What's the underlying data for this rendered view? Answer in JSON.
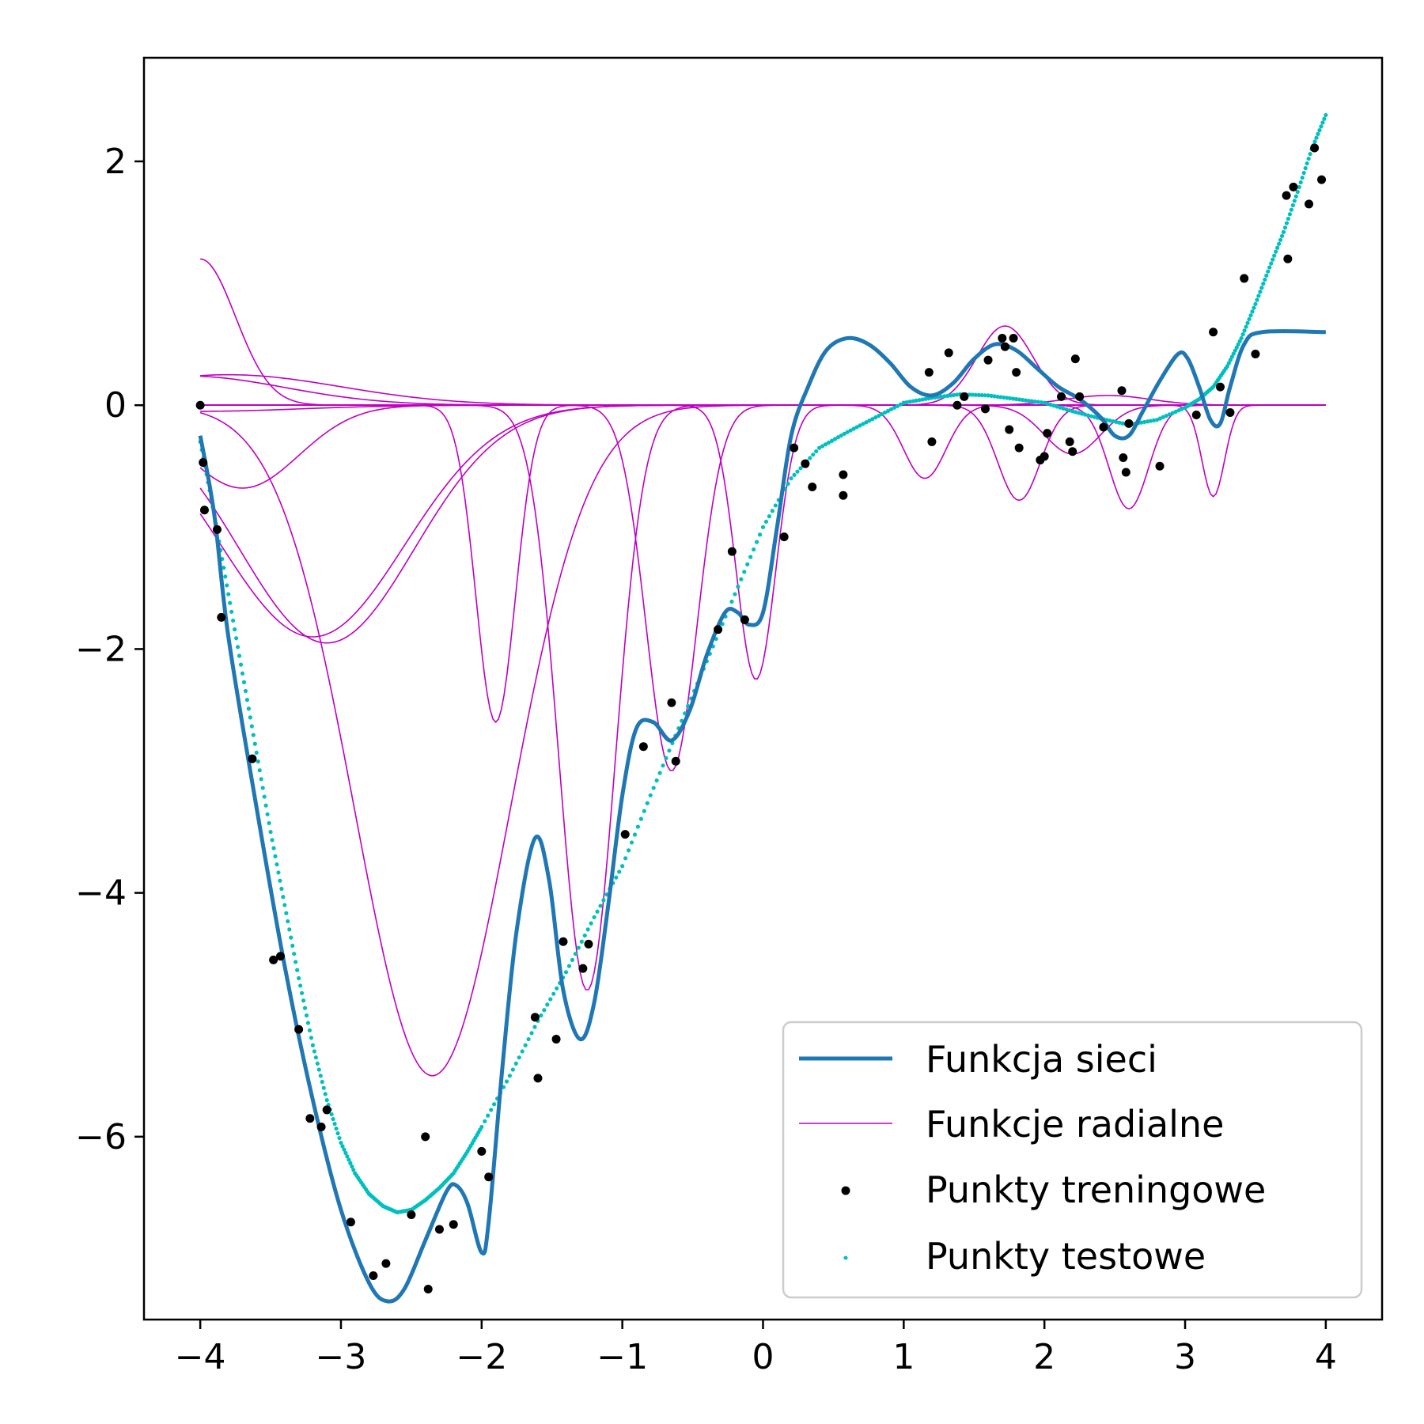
{
  "chart_data": {
    "type": "line",
    "title": "",
    "xlabel": "",
    "ylabel": "",
    "xlim": [
      -4.4,
      4.4
    ],
    "ylim": [
      -7.5,
      2.85
    ],
    "xticks": [
      -4,
      -3,
      -2,
      -1,
      0,
      1,
      2,
      3,
      4
    ],
    "yticks": [
      2,
      0,
      -2,
      -4,
      -6
    ],
    "xtick_labels": [
      "−4",
      "−3",
      "−2",
      "−1",
      "0",
      "1",
      "2",
      "3",
      "4"
    ],
    "ytick_labels": [
      "2",
      "0",
      "−2",
      "−4",
      "−6"
    ],
    "grid": false,
    "legend_position": "lower-right",
    "colors": {
      "network": "#1f77b4",
      "radial": "#bf00bf",
      "train": "#000000",
      "test": "#00bfbf"
    },
    "series": [
      {
        "name": "Funkcja sieci",
        "kind": "line",
        "points": [
          [
            -4.0,
            -0.25
          ],
          [
            -3.9,
            -0.9
          ],
          [
            -3.8,
            -1.9
          ],
          [
            -3.6,
            -3.3
          ],
          [
            -3.4,
            -4.6
          ],
          [
            -3.2,
            -5.7
          ],
          [
            -3.0,
            -6.6
          ],
          [
            -2.8,
            -7.2
          ],
          [
            -2.67,
            -7.35
          ],
          [
            -2.55,
            -7.25
          ],
          [
            -2.4,
            -6.85
          ],
          [
            -2.25,
            -6.45
          ],
          [
            -2.18,
            -6.4
          ],
          [
            -2.1,
            -6.55
          ],
          [
            -2.0,
            -6.95
          ],
          [
            -1.95,
            -6.7
          ],
          [
            -1.85,
            -5.4
          ],
          [
            -1.75,
            -4.3
          ],
          [
            -1.62,
            -3.55
          ],
          [
            -1.52,
            -3.9
          ],
          [
            -1.42,
            -4.8
          ],
          [
            -1.3,
            -5.2
          ],
          [
            -1.2,
            -4.9
          ],
          [
            -1.1,
            -4.1
          ],
          [
            -1.0,
            -3.2
          ],
          [
            -0.9,
            -2.65
          ],
          [
            -0.78,
            -2.6
          ],
          [
            -0.65,
            -2.75
          ],
          [
            -0.52,
            -2.5
          ],
          [
            -0.4,
            -2.05
          ],
          [
            -0.27,
            -1.7
          ],
          [
            -0.18,
            -1.7
          ],
          [
            -0.1,
            -1.8
          ],
          [
            0.0,
            -1.7
          ],
          [
            0.1,
            -1.0
          ],
          [
            0.2,
            -0.25
          ],
          [
            0.32,
            0.15
          ],
          [
            0.45,
            0.45
          ],
          [
            0.6,
            0.55
          ],
          [
            0.75,
            0.5
          ],
          [
            0.9,
            0.35
          ],
          [
            1.05,
            0.15
          ],
          [
            1.2,
            0.08
          ],
          [
            1.35,
            0.18
          ],
          [
            1.5,
            0.38
          ],
          [
            1.65,
            0.5
          ],
          [
            1.8,
            0.45
          ],
          [
            1.95,
            0.3
          ],
          [
            2.1,
            0.15
          ],
          [
            2.25,
            0.05
          ],
          [
            2.4,
            -0.1
          ],
          [
            2.5,
            -0.25
          ],
          [
            2.6,
            -0.25
          ],
          [
            2.7,
            -0.05
          ],
          [
            2.82,
            0.2
          ],
          [
            2.95,
            0.42
          ],
          [
            3.02,
            0.38
          ],
          [
            3.1,
            0.15
          ],
          [
            3.18,
            -0.12
          ],
          [
            3.25,
            -0.15
          ],
          [
            3.32,
            0.15
          ],
          [
            3.42,
            0.5
          ],
          [
            3.55,
            0.6
          ],
          [
            4.0,
            0.6
          ]
        ]
      },
      {
        "name": "Funkcje radialne",
        "kind": "rbf-family",
        "curves": [
          {
            "a": 1.2,
            "c": -4.0,
            "s": 0.25
          },
          {
            "a": 0.25,
            "c": -3.8,
            "s": 0.8
          },
          {
            "a": 0.24,
            "c": -4.1,
            "s": 0.7
          },
          {
            "a": -0.05,
            "c": -4.0,
            "s": 0.7
          },
          {
            "a": -0.68,
            "c": -3.7,
            "s": 0.4
          },
          {
            "a": -1.9,
            "c": -3.2,
            "s": 0.65
          },
          {
            "a": -1.95,
            "c": -3.1,
            "s": 0.62
          },
          {
            "a": -2.6,
            "c": -1.9,
            "s": 0.14
          },
          {
            "a": -5.5,
            "c": -2.35,
            "s": 0.55
          },
          {
            "a": -4.8,
            "c": -1.25,
            "s": 0.2
          },
          {
            "a": -3.0,
            "c": -0.65,
            "s": 0.18
          },
          {
            "a": -2.25,
            "c": -0.05,
            "s": 0.14
          },
          {
            "a": -0.6,
            "c": 1.15,
            "s": 0.15
          },
          {
            "a": 0.65,
            "c": 1.72,
            "s": 0.2
          },
          {
            "a": -0.78,
            "c": 1.82,
            "s": 0.15
          },
          {
            "a": -0.4,
            "c": 2.2,
            "s": 0.2
          },
          {
            "a": 0.08,
            "c": 2.45,
            "s": 0.3
          },
          {
            "a": -0.85,
            "c": 2.6,
            "s": 0.14
          },
          {
            "a": -0.75,
            "c": 3.2,
            "s": 0.08
          }
        ]
      },
      {
        "name": "Punkty treningowe",
        "kind": "scatter",
        "points": [
          [
            -4.0,
            0.0
          ],
          [
            -3.98,
            -0.47
          ],
          [
            -3.97,
            -0.86
          ],
          [
            -3.88,
            -1.02
          ],
          [
            -3.85,
            -1.74
          ],
          [
            -3.63,
            -2.9
          ],
          [
            -3.48,
            -4.55
          ],
          [
            -3.43,
            -4.52
          ],
          [
            -3.3,
            -5.12
          ],
          [
            -3.22,
            -5.85
          ],
          [
            -3.14,
            -5.92
          ],
          [
            -3.1,
            -5.78
          ],
          [
            -2.93,
            -6.7
          ],
          [
            -2.77,
            -7.14
          ],
          [
            -2.68,
            -7.04
          ],
          [
            -2.5,
            -6.64
          ],
          [
            -2.4,
            -6.0
          ],
          [
            -2.38,
            -7.25
          ],
          [
            -2.3,
            -6.76
          ],
          [
            -2.2,
            -6.72
          ],
          [
            -2.0,
            -6.12
          ],
          [
            -1.95,
            -6.33
          ],
          [
            -1.62,
            -5.02
          ],
          [
            -1.6,
            -5.52
          ],
          [
            -1.47,
            -5.2
          ],
          [
            -1.42,
            -4.4
          ],
          [
            -1.28,
            -4.62
          ],
          [
            -1.24,
            -4.42
          ],
          [
            -0.98,
            -3.52
          ],
          [
            -0.85,
            -2.8
          ],
          [
            -0.65,
            -2.44
          ],
          [
            -0.62,
            -2.92
          ],
          [
            -0.32,
            -1.84
          ],
          [
            -0.22,
            -1.2
          ],
          [
            -0.13,
            -1.76
          ],
          [
            0.15,
            -1.08
          ],
          [
            0.22,
            -0.35
          ],
          [
            0.3,
            -0.48
          ],
          [
            0.35,
            -0.67
          ],
          [
            0.57,
            -0.57
          ],
          [
            0.57,
            -0.74
          ],
          [
            1.18,
            0.27
          ],
          [
            1.2,
            -0.3
          ],
          [
            1.32,
            0.43
          ],
          [
            1.38,
            0.0
          ],
          [
            1.43,
            0.07
          ],
          [
            1.58,
            -0.03
          ],
          [
            1.6,
            0.37
          ],
          [
            1.7,
            0.55
          ],
          [
            1.72,
            0.48
          ],
          [
            1.75,
            -0.2
          ],
          [
            1.78,
            0.55
          ],
          [
            1.8,
            0.27
          ],
          [
            1.82,
            -0.35
          ],
          [
            1.97,
            -0.45
          ],
          [
            2.0,
            -0.42
          ],
          [
            2.02,
            -0.23
          ],
          [
            2.12,
            0.07
          ],
          [
            2.18,
            -0.3
          ],
          [
            2.2,
            -0.38
          ],
          [
            2.22,
            0.38
          ],
          [
            2.25,
            0.07
          ],
          [
            2.42,
            -0.18
          ],
          [
            2.55,
            0.12
          ],
          [
            2.56,
            -0.43
          ],
          [
            2.58,
            -0.55
          ],
          [
            2.6,
            -0.15
          ],
          [
            2.82,
            -0.5
          ],
          [
            3.08,
            -0.08
          ],
          [
            3.2,
            0.6
          ],
          [
            3.25,
            0.15
          ],
          [
            3.32,
            -0.06
          ],
          [
            3.42,
            1.04
          ],
          [
            3.5,
            0.42
          ],
          [
            3.72,
            1.72
          ],
          [
            3.73,
            1.2
          ],
          [
            3.77,
            1.79
          ],
          [
            3.88,
            1.65
          ],
          [
            3.92,
            2.11
          ],
          [
            3.97,
            1.85
          ]
        ]
      },
      {
        "name": "Punkty testowe",
        "kind": "scatter-curve",
        "points": [
          [
            -4.0,
            -0.3
          ],
          [
            -3.9,
            -0.9
          ],
          [
            -3.8,
            -1.55
          ],
          [
            -3.7,
            -2.2
          ],
          [
            -3.6,
            -2.85
          ],
          [
            -3.5,
            -3.5
          ],
          [
            -3.4,
            -4.1
          ],
          [
            -3.3,
            -4.7
          ],
          [
            -3.2,
            -5.25
          ],
          [
            -3.1,
            -5.7
          ],
          [
            -3.0,
            -6.05
          ],
          [
            -2.9,
            -6.3
          ],
          [
            -2.8,
            -6.47
          ],
          [
            -2.7,
            -6.57
          ],
          [
            -2.6,
            -6.62
          ],
          [
            -2.5,
            -6.6
          ],
          [
            -2.4,
            -6.52
          ],
          [
            -2.3,
            -6.42
          ],
          [
            -2.2,
            -6.3
          ],
          [
            -2.1,
            -6.12
          ],
          [
            -2.0,
            -5.92
          ],
          [
            -1.8,
            -5.5
          ],
          [
            -1.6,
            -5.05
          ],
          [
            -1.4,
            -4.65
          ],
          [
            -1.2,
            -4.2
          ],
          [
            -1.0,
            -3.78
          ],
          [
            -0.8,
            -3.2
          ],
          [
            -0.6,
            -2.65
          ],
          [
            -0.4,
            -2.1
          ],
          [
            -0.2,
            -1.55
          ],
          [
            0.0,
            -1.0
          ],
          [
            0.2,
            -0.6
          ],
          [
            0.4,
            -0.35
          ],
          [
            0.6,
            -0.22
          ],
          [
            0.8,
            -0.1
          ],
          [
            1.0,
            0.02
          ],
          [
            1.2,
            0.06
          ],
          [
            1.4,
            0.09
          ],
          [
            1.6,
            0.08
          ],
          [
            1.8,
            0.05
          ],
          [
            2.0,
            0.02
          ],
          [
            2.2,
            -0.05
          ],
          [
            2.4,
            -0.11
          ],
          [
            2.6,
            -0.16
          ],
          [
            2.8,
            -0.12
          ],
          [
            3.0,
            -0.02
          ],
          [
            3.1,
            0.05
          ],
          [
            3.2,
            0.15
          ],
          [
            3.3,
            0.32
          ],
          [
            3.4,
            0.55
          ],
          [
            3.5,
            0.83
          ],
          [
            3.6,
            1.13
          ],
          [
            3.7,
            1.42
          ],
          [
            3.8,
            1.75
          ],
          [
            3.9,
            2.1
          ],
          [
            4.0,
            2.38
          ]
        ]
      }
    ]
  },
  "legend": {
    "items": [
      {
        "label": "Funkcja sieci"
      },
      {
        "label": "Funkcje radialne"
      },
      {
        "label": "Punkty treningowe"
      },
      {
        "label": "Punkty testowe"
      }
    ]
  }
}
